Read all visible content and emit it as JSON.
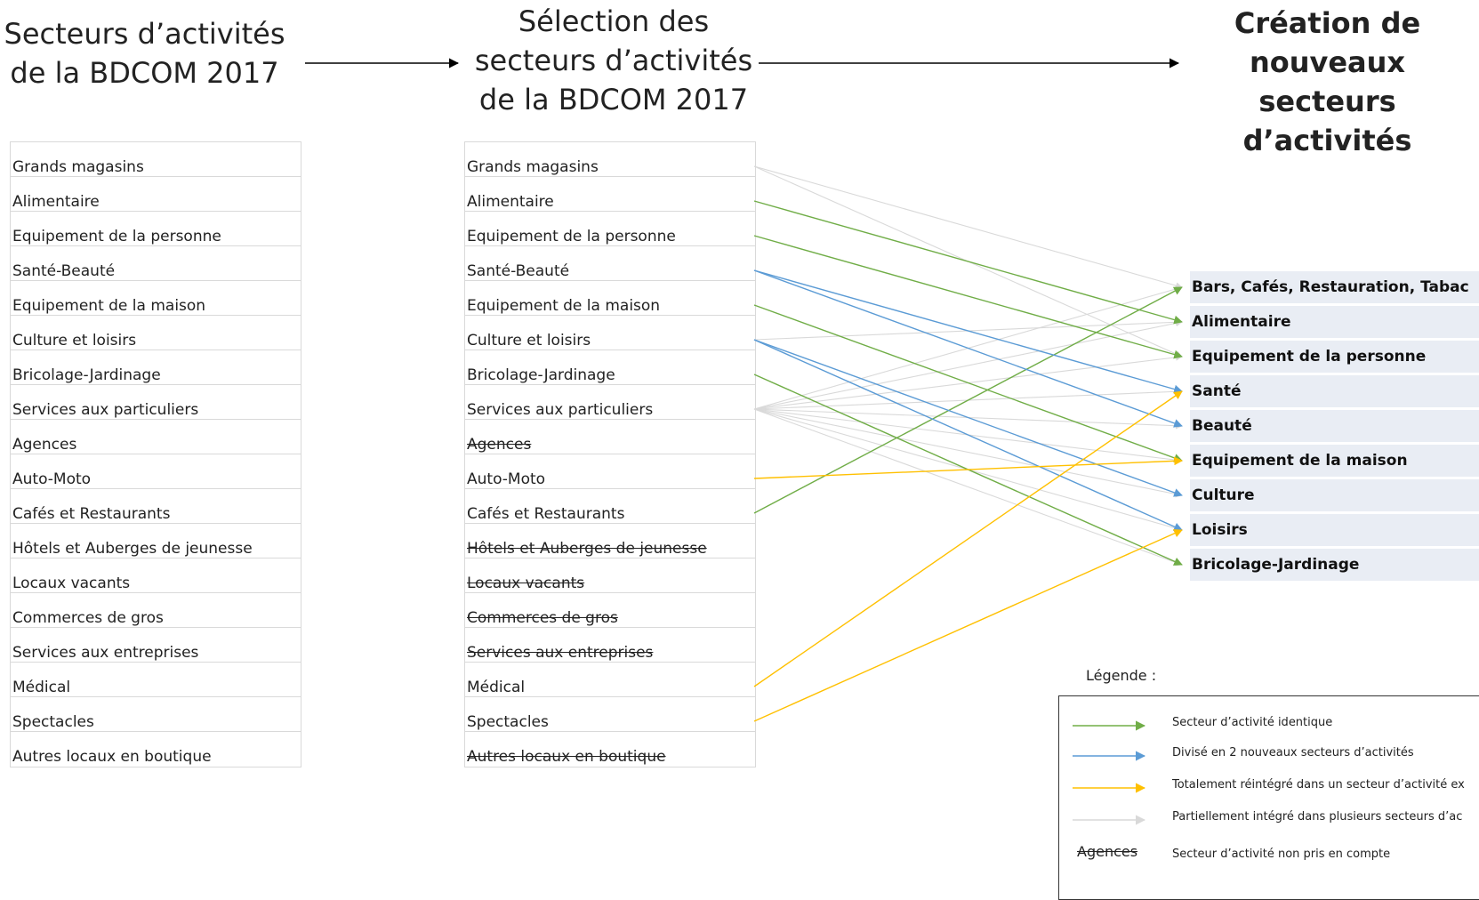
{
  "titles": {
    "left": [
      "Secteurs d’activités",
      "de la BDCOM 2017"
    ],
    "middle": [
      "Sélection des",
      "secteurs d’activités",
      "de la BDCOM 2017"
    ],
    "right": [
      "Création de",
      "nouveaux secteurs",
      "d’activités"
    ]
  },
  "left_list": [
    "Grands magasins",
    "Alimentaire",
    "Equipement de la personne",
    "Santé-Beauté",
    "Equipement de la maison",
    "Culture et loisirs",
    "Bricolage-Jardinage",
    "Services aux particuliers",
    "Agences",
    "Auto-Moto",
    "Cafés et Restaurants",
    "Hôtels et Auberges de jeunesse",
    "Locaux vacants",
    "Commerces de gros",
    "Services aux entreprises",
    "Médical",
    "Spectacles",
    "Autres locaux en boutique"
  ],
  "middle_list": [
    {
      "label": "Grands magasins",
      "struck": false
    },
    {
      "label": "Alimentaire",
      "struck": false
    },
    {
      "label": "Equipement de la personne",
      "struck": false
    },
    {
      "label": "Santé-Beauté",
      "struck": false
    },
    {
      "label": "Equipement de la maison",
      "struck": false
    },
    {
      "label": "Culture et loisirs",
      "struck": false
    },
    {
      "label": "Bricolage-Jardinage",
      "struck": false
    },
    {
      "label": "Services aux particuliers",
      "struck": false
    },
    {
      "label": "Agences",
      "struck": true
    },
    {
      "label": "Auto-Moto",
      "struck": false
    },
    {
      "label": "Cafés et Restaurants",
      "struck": false
    },
    {
      "label": "Hôtels et Auberges de jeunesse",
      "struck": true
    },
    {
      "label": "Locaux vacants",
      "struck": true
    },
    {
      "label": "Commerces de gros",
      "struck": true
    },
    {
      "label": "Services aux entreprises",
      "struck": true
    },
    {
      "label": "Médical",
      "struck": false
    },
    {
      "label": "Spectacles",
      "struck": false
    },
    {
      "label": "Autres locaux en boutique",
      "struck": true
    }
  ],
  "right_list": [
    "Bars, Cafés, Restauration, Tabac",
    "Alimentaire",
    "Equipement de la personne",
    "Santé",
    "Beauté",
    "Equipement de la maison",
    "Culture",
    "Loisirs",
    "Bricolage-Jardinage"
  ],
  "colors": {
    "identique": "#70ad47",
    "divise": "#5b9bd5",
    "reintegre": "#ffc000",
    "partiel": "#d9d9d9",
    "arrow": "#000000"
  },
  "links": [
    {
      "from": 1,
      "to": 1,
      "kind": "identique"
    },
    {
      "from": 2,
      "to": 2,
      "kind": "identique"
    },
    {
      "from": 4,
      "to": 5,
      "kind": "identique"
    },
    {
      "from": 6,
      "to": 8,
      "kind": "identique"
    },
    {
      "from": 10,
      "to": 0,
      "kind": "identique"
    },
    {
      "from": 3,
      "to": 3,
      "kind": "divise"
    },
    {
      "from": 3,
      "to": 4,
      "kind": "divise"
    },
    {
      "from": 5,
      "to": 6,
      "kind": "divise"
    },
    {
      "from": 5,
      "to": 7,
      "kind": "divise"
    },
    {
      "from": 9,
      "to": 5,
      "kind": "reintegre"
    },
    {
      "from": 15,
      "to": 3,
      "kind": "reintegre"
    },
    {
      "from": 16,
      "to": 7,
      "kind": "reintegre"
    },
    {
      "from": 0,
      "to": 0,
      "kind": "partiel"
    },
    {
      "from": 0,
      "to": 2,
      "kind": "partiel"
    },
    {
      "from": 5,
      "to": 1,
      "kind": "partiel"
    },
    {
      "from": 7,
      "to": 0,
      "kind": "partiel"
    },
    {
      "from": 7,
      "to": 1,
      "kind": "partiel"
    },
    {
      "from": 7,
      "to": 2,
      "kind": "partiel"
    },
    {
      "from": 7,
      "to": 3,
      "kind": "partiel"
    },
    {
      "from": 7,
      "to": 4,
      "kind": "partiel"
    },
    {
      "from": 7,
      "to": 5,
      "kind": "partiel"
    },
    {
      "from": 7,
      "to": 6,
      "kind": "partiel"
    },
    {
      "from": 7,
      "to": 7,
      "kind": "partiel"
    },
    {
      "from": 7,
      "to": 8,
      "kind": "partiel"
    }
  ],
  "legend": {
    "title": "Légende :",
    "items": [
      {
        "kind": "identique",
        "label": "Secteur d’activité identique"
      },
      {
        "kind": "divise",
        "label": "Divisé en 2 nouveaux secteurs d’activités"
      },
      {
        "kind": "reintegre",
        "label": "Totalement réintégré dans un secteur d’activité ex"
      },
      {
        "kind": "partiel",
        "label": " Partiellement intégré dans plusieurs secteurs d’ac"
      }
    ],
    "sample_struck": "Agences",
    "sample_label": "Secteur d’activité non pris en compte"
  }
}
